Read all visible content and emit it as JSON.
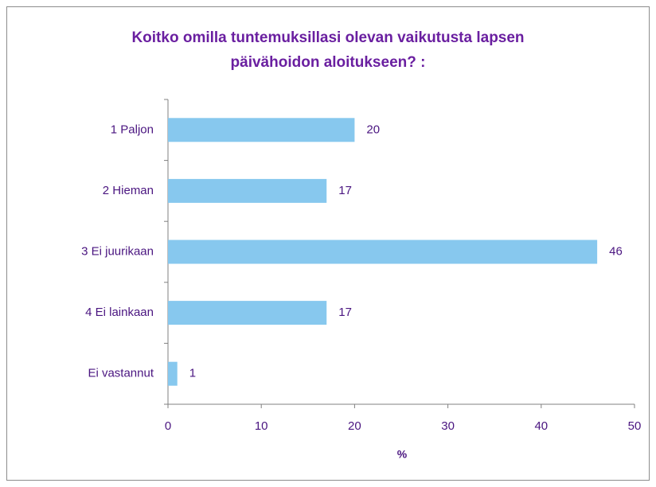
{
  "chart_data": {
    "type": "bar",
    "orientation": "horizontal",
    "title": [
      "Koitko omilla tuntemuksillasi olevan vaikutusta lapsen",
      "päivähoidon aloitukseen?  :"
    ],
    "categories": [
      "1 Paljon",
      "2 Hieman",
      "3 Ei juurikaan",
      "4 Ei lainkaan",
      "Ei vastannut"
    ],
    "values": [
      20,
      17,
      46,
      17,
      1
    ],
    "color": "#87c8ee",
    "xlabel": "%",
    "xlim": [
      0,
      50
    ],
    "xticks": [
      0,
      10,
      20,
      30,
      40,
      50
    ],
    "grid": false
  }
}
